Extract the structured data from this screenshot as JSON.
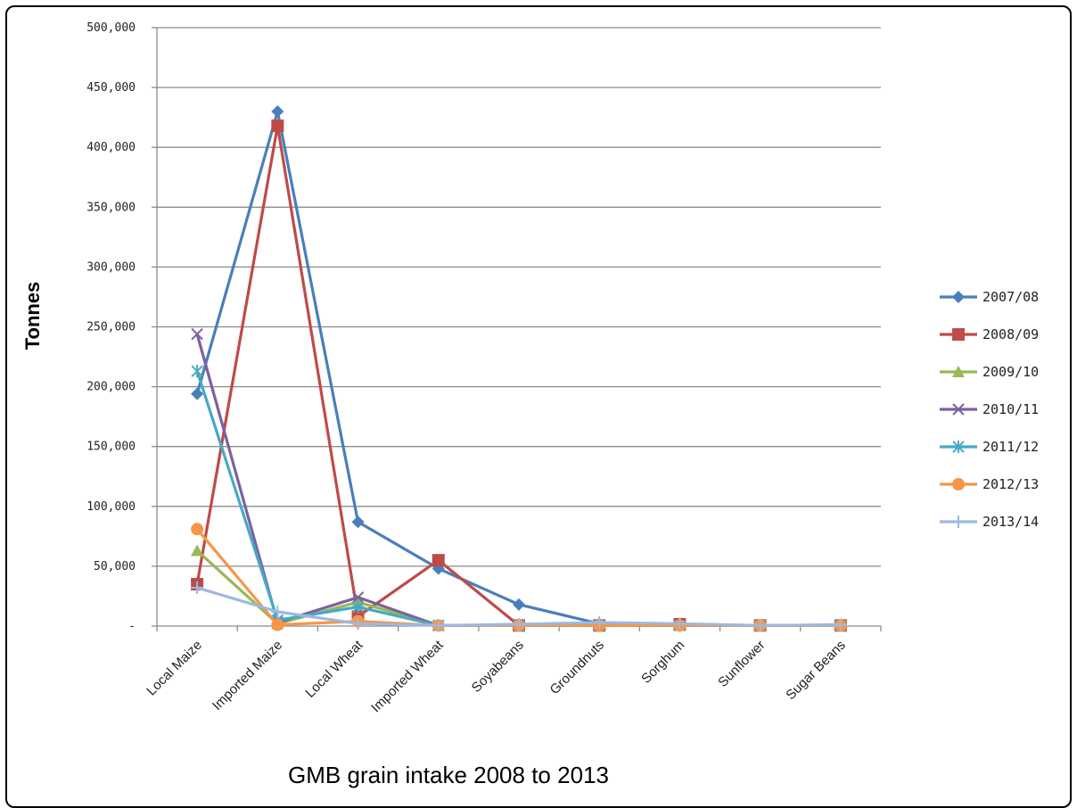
{
  "chart_data": {
    "type": "line",
    "xlabel": "GMB grain intake 2008 to 2013",
    "ylabel": "Tonnes",
    "ylim": [
      0,
      500000
    ],
    "yticks": [
      {
        "value": 0,
        "label": "-"
      },
      {
        "value": 50000,
        "label": "50,000"
      },
      {
        "value": 100000,
        "label": "100,000"
      },
      {
        "value": 150000,
        "label": "150,000"
      },
      {
        "value": 200000,
        "label": "200,000"
      },
      {
        "value": 250000,
        "label": "250,000"
      },
      {
        "value": 300000,
        "label": "300,000"
      },
      {
        "value": 350000,
        "label": "350,000"
      },
      {
        "value": 400000,
        "label": "400,000"
      },
      {
        "value": 450000,
        "label": "450,000"
      },
      {
        "value": 500000,
        "label": "500,000"
      }
    ],
    "categories": [
      "Local Maize",
      "Imported Maize",
      "Local Wheat",
      "Imported Wheat",
      "Soyabeans",
      "Groundnuts",
      "Sorghum",
      "Sunflower",
      "Sugar Beans"
    ],
    "grid": true,
    "legend_position": "right",
    "series": [
      {
        "name": "2007/08",
        "color": "#4a7ebb",
        "marker": "diamond",
        "values": [
          194000,
          430000,
          87000,
          48000,
          18000,
          2000,
          1500,
          500,
          1000
        ]
      },
      {
        "name": "2008/09",
        "color": "#be4b48",
        "marker": "square",
        "values": [
          35000,
          418000,
          8000,
          55000,
          500,
          500,
          1500,
          500,
          500
        ]
      },
      {
        "name": "2009/10",
        "color": "#98b954",
        "marker": "triangle",
        "values": [
          63000,
          2000,
          20000,
          500,
          500,
          500,
          500,
          500,
          500
        ]
      },
      {
        "name": "2010/11",
        "color": "#7d60a0",
        "marker": "x",
        "values": [
          244000,
          3000,
          24000,
          500,
          500,
          500,
          500,
          500,
          500
        ]
      },
      {
        "name": "2011/12",
        "color": "#46aac5",
        "marker": "star",
        "values": [
          213000,
          5000,
          16000,
          500,
          500,
          500,
          500,
          500,
          500
        ]
      },
      {
        "name": "2012/13",
        "color": "#f79646",
        "marker": "circle",
        "values": [
          81000,
          1000,
          4000,
          500,
          500,
          500,
          500,
          500,
          500
        ]
      },
      {
        "name": "2013/14",
        "color": "#9cb9e0",
        "marker": "plus",
        "values": [
          32000,
          12000,
          2000,
          500,
          1500,
          3000,
          2000,
          500,
          1000
        ]
      }
    ]
  }
}
